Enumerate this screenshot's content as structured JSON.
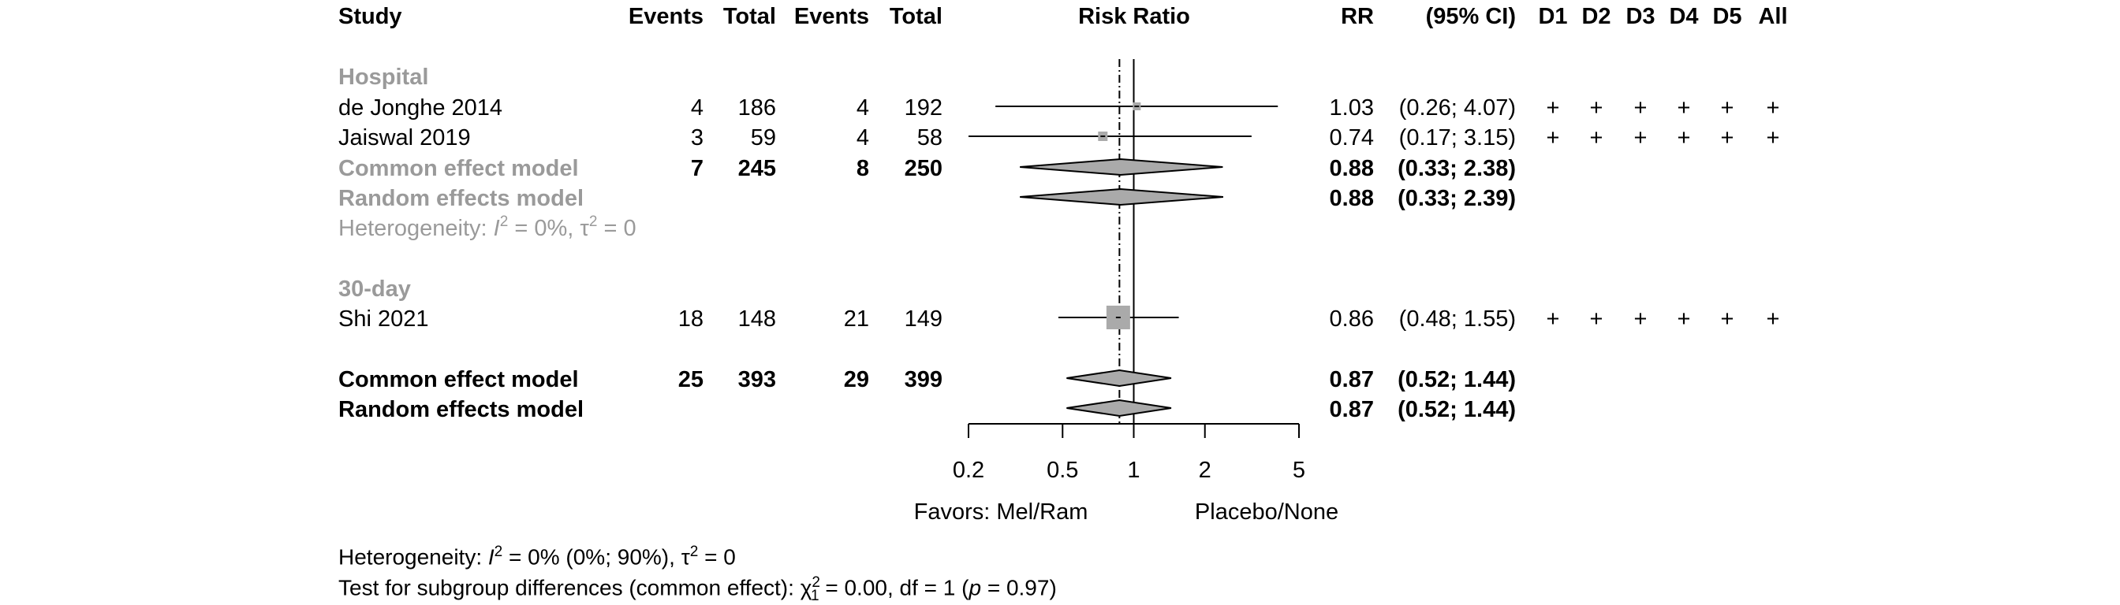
{
  "headers": {
    "study": "Study",
    "events_exp": "Events",
    "total_exp": "Total",
    "events_ctrl": "Events",
    "total_ctrl": "Total",
    "risk_ratio": "Risk Ratio",
    "rr": "RR",
    "ci": "(95% CI)",
    "d1": "D1",
    "d2": "D2",
    "d3": "D3",
    "d4": "D4",
    "d5": "D5",
    "all": "All"
  },
  "groups": [
    {
      "name": "Hospital",
      "studies": [
        {
          "study": "de Jonghe 2014",
          "events_exp": "4",
          "total_exp": "186",
          "events_ctrl": "4",
          "total_ctrl": "192",
          "rr": "1.03",
          "ci": "(0.26; 4.07)",
          "rob": [
            "+",
            "+",
            "+",
            "+",
            "+",
            "+"
          ]
        },
        {
          "study": "Jaiswal 2019",
          "events_exp": "3",
          "total_exp": "59",
          "events_ctrl": "4",
          "total_ctrl": "58",
          "rr": "0.74",
          "ci": "(0.17; 3.15)",
          "rob": [
            "+",
            "+",
            "+",
            "+",
            "+",
            "+"
          ]
        }
      ],
      "common": {
        "label": "Common effect model",
        "events_exp": "7",
        "total_exp": "245",
        "events_ctrl": "8",
        "total_ctrl": "250",
        "rr": "0.88",
        "ci": "(0.33; 2.38)"
      },
      "random": {
        "label": "Random effects model",
        "rr": "0.88",
        "ci": "(0.33; 2.39)"
      },
      "heterogeneity": {
        "prefix": "Heterogeneity: ",
        "i2_symbol": "I",
        "i2_rest": " = 0%, ",
        "tau_rest": " = 0"
      }
    },
    {
      "name": "30-day",
      "studies": [
        {
          "study": "Shi 2021",
          "events_exp": "18",
          "total_exp": "148",
          "events_ctrl": "21",
          "total_ctrl": "149",
          "rr": "0.86",
          "ci": "(0.48; 1.55)",
          "rob": [
            "+",
            "+",
            "+",
            "+",
            "+",
            "+"
          ]
        }
      ]
    }
  ],
  "overall": {
    "common": {
      "label": "Common effect model",
      "events_exp": "25",
      "total_exp": "393",
      "events_ctrl": "29",
      "total_ctrl": "399",
      "rr": "0.87",
      "ci": "(0.52; 1.44)"
    },
    "random": {
      "label": "Random effects model",
      "rr": "0.87",
      "ci": "(0.52; 1.44)"
    }
  },
  "axis": {
    "ticks": [
      0.2,
      0.5,
      1,
      2,
      5
    ],
    "tick_labels": [
      "0.2",
      "0.5",
      "1",
      "2",
      "5"
    ],
    "favors_left": "Favors: Mel/Ram",
    "favors_right": "Placebo/None"
  },
  "footer": {
    "het_prefix": "Heterogeneity: ",
    "het_i2": "I",
    "het_i2_rest": " = 0% (0%; 90%), ",
    "het_tau_rest": " = 0",
    "test_prefix": "Test for subgroup differences (common effect): ",
    "test_chi": "χ",
    "test_rest": " = 0.00, df = 1 (",
    "test_p": "p",
    "test_end": " = 0.97)"
  },
  "chart_data": {
    "type": "forest",
    "scale": "log",
    "xlim": [
      0.2,
      5
    ],
    "null_line": 1,
    "pooled_reference": 0.87,
    "studies": [
      {
        "label": "de Jonghe 2014",
        "group": "Hospital",
        "rr": 1.03,
        "lower": 0.26,
        "upper": 4.07
      },
      {
        "label": "Jaiswal 2019",
        "group": "Hospital",
        "rr": 0.74,
        "lower": 0.17,
        "upper": 3.15
      },
      {
        "label": "Shi 2021",
        "group": "30-day",
        "rr": 0.86,
        "lower": 0.48,
        "upper": 1.55
      }
    ],
    "pooled": [
      {
        "label": "Common effect model",
        "group": "Hospital",
        "rr": 0.88,
        "lower": 0.33,
        "upper": 2.38
      },
      {
        "label": "Random effects model",
        "group": "Hospital",
        "rr": 0.88,
        "lower": 0.33,
        "upper": 2.39
      },
      {
        "label": "Common effect model",
        "group": "Overall",
        "rr": 0.87,
        "lower": 0.52,
        "upper": 1.44
      },
      {
        "label": "Random effects model",
        "group": "Overall",
        "rr": 0.87,
        "lower": 0.52,
        "upper": 1.44
      }
    ]
  }
}
